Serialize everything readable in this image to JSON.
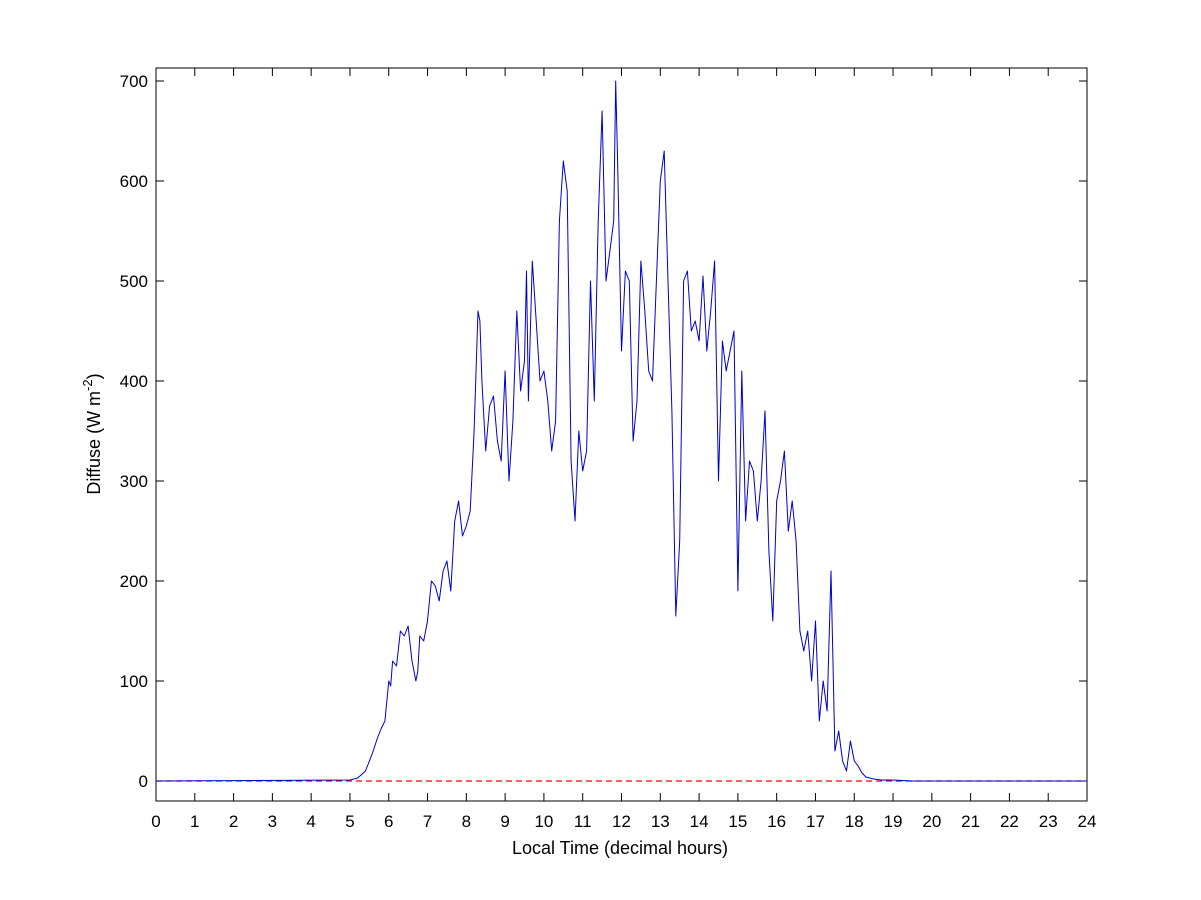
{
  "chart_data": {
    "type": "line",
    "title": "",
    "xlabel": "Local Time (decimal hours)",
    "ylabel": "Diffuse (W m",
    "ylabel_superscript": "-2",
    "ylabel_suffix": ")",
    "xlim": [
      0,
      24
    ],
    "ylim": [
      -20,
      713
    ],
    "xticks": [
      0,
      1,
      2,
      3,
      4,
      5,
      6,
      7,
      8,
      9,
      10,
      11,
      12,
      13,
      14,
      15,
      16,
      17,
      18,
      19,
      20,
      21,
      22,
      23,
      24
    ],
    "yticks": [
      0,
      100,
      200,
      300,
      400,
      500,
      600,
      700
    ],
    "grid": false,
    "legend": "none",
    "colors": {
      "series": "#0000cc",
      "reference": "#ff0000",
      "axes": "#000000"
    },
    "reference_line": {
      "y": 0,
      "style": "dashed"
    },
    "series": [
      {
        "x": [
          0,
          5.0,
          5.2,
          5.4,
          5.5,
          5.6,
          5.7,
          5.8,
          5.9,
          6.0,
          6.05,
          6.1,
          6.2,
          6.3,
          6.4,
          6.5,
          6.6,
          6.7,
          6.75,
          6.8,
          6.9,
          7.0,
          7.1,
          7.2,
          7.3,
          7.4,
          7.5,
          7.6,
          7.7,
          7.8,
          7.9,
          8.0,
          8.1,
          8.2,
          8.3,
          8.35,
          8.4,
          8.5,
          8.6,
          8.7,
          8.8,
          8.9,
          9.0,
          9.1,
          9.2,
          9.3,
          9.4,
          9.5,
          9.55,
          9.6,
          9.7,
          9.8,
          9.9,
          10.0,
          10.1,
          10.2,
          10.3,
          10.4,
          10.5,
          10.6,
          10.7,
          10.8,
          10.9,
          11.0,
          11.1,
          11.2,
          11.3,
          11.4,
          11.5,
          11.6,
          11.7,
          11.8,
          11.85,
          11.9,
          12.0,
          12.1,
          12.2,
          12.3,
          12.4,
          12.5,
          12.6,
          12.7,
          12.8,
          12.9,
          13.0,
          13.1,
          13.2,
          13.3,
          13.4,
          13.5,
          13.6,
          13.7,
          13.8,
          13.9,
          14.0,
          14.1,
          14.2,
          14.3,
          14.4,
          14.5,
          14.6,
          14.7,
          14.8,
          14.9,
          15.0,
          15.1,
          15.2,
          15.3,
          15.4,
          15.5,
          15.6,
          15.7,
          15.8,
          15.9,
          16.0,
          16.1,
          16.2,
          16.3,
          16.4,
          16.5,
          16.6,
          16.7,
          16.8,
          16.9,
          17.0,
          17.1,
          17.2,
          17.3,
          17.4,
          17.5,
          17.6,
          17.7,
          17.8,
          17.9,
          18.0,
          18.1,
          18.2,
          18.3,
          18.5,
          18.7,
          19.0,
          19.5,
          24
        ],
        "y": [
          0,
          1,
          3,
          10,
          20,
          30,
          42,
          52,
          60,
          100,
          95,
          120,
          115,
          150,
          145,
          155,
          120,
          100,
          110,
          145,
          140,
          160,
          200,
          195,
          180,
          210,
          220,
          190,
          260,
          280,
          245,
          255,
          270,
          350,
          470,
          460,
          400,
          330,
          375,
          385,
          340,
          320,
          410,
          300,
          360,
          470,
          390,
          420,
          510,
          380,
          520,
          460,
          400,
          410,
          380,
          330,
          360,
          560,
          620,
          590,
          320,
          260,
          350,
          310,
          330,
          500,
          380,
          560,
          670,
          500,
          530,
          560,
          700,
          620,
          430,
          510,
          500,
          340,
          380,
          520,
          470,
          410,
          400,
          500,
          600,
          630,
          500,
          370,
          165,
          240,
          500,
          510,
          450,
          460,
          440,
          505,
          430,
          470,
          520,
          300,
          440,
          410,
          430,
          450,
          190,
          410,
          260,
          320,
          310,
          260,
          300,
          370,
          230,
          160,
          280,
          300,
          330,
          250,
          280,
          240,
          150,
          130,
          150,
          100,
          160,
          60,
          100,
          70,
          210,
          30,
          50,
          20,
          10,
          40,
          20,
          15,
          8,
          4,
          2,
          1,
          1,
          0,
          0
        ]
      }
    ]
  }
}
